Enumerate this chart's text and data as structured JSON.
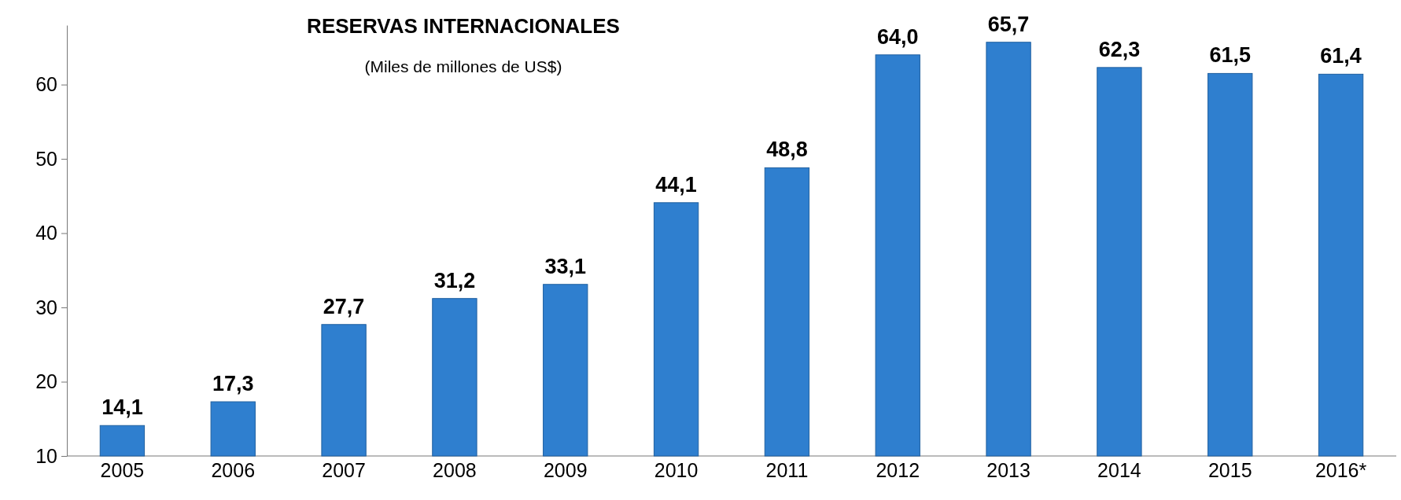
{
  "chart_data": {
    "type": "bar",
    "title": "RESERVAS INTERNACIONALES",
    "subtitle": "(Miles de millones de US$)",
    "categories": [
      "2005",
      "2006",
      "2007",
      "2008",
      "2009",
      "2010",
      "2011",
      "2012",
      "2013",
      "2014",
      "2015",
      "2016*"
    ],
    "values": [
      14.1,
      17.3,
      27.7,
      31.2,
      33.1,
      44.1,
      48.8,
      64.0,
      65.7,
      62.3,
      61.5,
      61.4
    ],
    "value_labels": [
      "14,1",
      "17,3",
      "27,7",
      "31,2",
      "33,1",
      "44,1",
      "48,8",
      "64,0",
      "65,7",
      "62,3",
      "61,5",
      "61,4"
    ],
    "color": "#2f7fcf",
    "ylim": [
      10,
      68
    ],
    "yticks": [
      10,
      20,
      30,
      40,
      50,
      60
    ],
    "grid": false
  }
}
